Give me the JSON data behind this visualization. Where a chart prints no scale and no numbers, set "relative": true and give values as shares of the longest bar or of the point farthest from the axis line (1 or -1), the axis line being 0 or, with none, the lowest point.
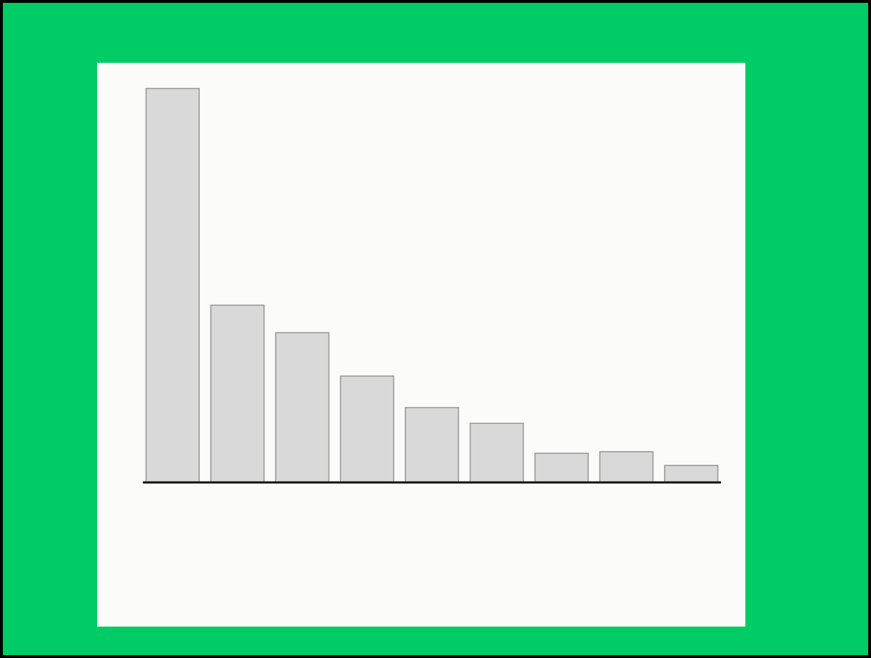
{
  "chart_data": {
    "type": "bar",
    "relative": true,
    "categories": [
      null,
      null,
      null,
      null,
      null,
      null,
      null,
      null,
      null
    ],
    "values": [
      1,
      0.45,
      0.38,
      0.27,
      0.19,
      0.15,
      0.074,
      0.078,
      0.043
    ],
    "color": "#d9d9d9"
  }
}
